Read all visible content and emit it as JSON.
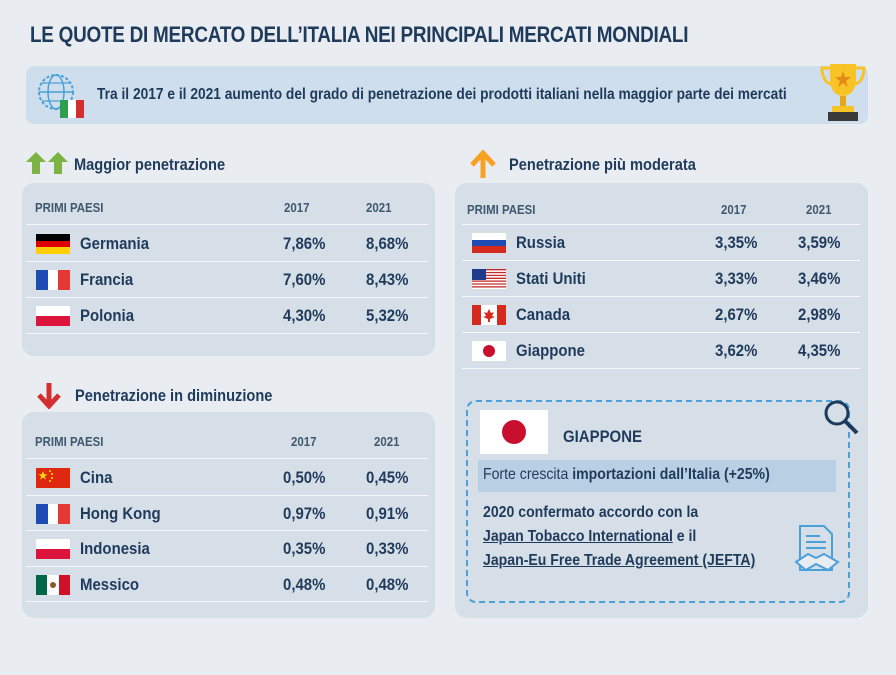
{
  "title": "LE QUOTE DI MERCATO DELL’ITALIA NEI PRINCIPALI MERCATI MONDIALI",
  "banner": {
    "text": "Tra il 2017 e il 2021 aumento del grado di penetrazione dei prodotti italiani nella maggior parte dei mercati",
    "left_icon": "globe-italy-flag-icon",
    "right_icon": "trophy-icon"
  },
  "columns": {
    "country": "PRIMI PAESI",
    "y1": "2017",
    "y2": "2021"
  },
  "colors": {
    "accent_green": "#7cb342",
    "accent_orange": "#f7a021",
    "accent_red": "#d32f2f",
    "navy": "#1f3b5c",
    "card": "#d6dfe7"
  },
  "maggior": {
    "title": "Maggior penetrazione",
    "icon": "double-arrow-up-green-icon",
    "rows": [
      {
        "country": "Germania",
        "v2017": "7,86%",
        "v2021": "8,68%",
        "flag": "de"
      },
      {
        "country": "Francia",
        "v2017": "7,60%",
        "v2021": "8,43%",
        "flag": "fr"
      },
      {
        "country": "Polonia",
        "v2017": "4,30%",
        "v2021": "5,32%",
        "flag": "pl"
      }
    ]
  },
  "diminuzione": {
    "title": "Penetrazione in diminuzione",
    "icon": "arrow-down-red-icon",
    "rows": [
      {
        "country": "Cina",
        "v2017": "0,50%",
        "v2021": "0,45%",
        "flag": "cn"
      },
      {
        "country": "Hong Kong",
        "v2017": "0,97%",
        "v2021": "0,91%",
        "flag": "fr"
      },
      {
        "country": "Indonesia",
        "v2017": "0,35%",
        "v2021": "0,33%",
        "flag": "pl"
      },
      {
        "country": "Messico",
        "v2017": "0,48%",
        "v2021": "0,48%",
        "flag": "mx"
      }
    ]
  },
  "moderata": {
    "title": "Penetrazione più moderata",
    "icon": "arrow-up-orange-icon",
    "rows": [
      {
        "country": "Russia",
        "v2017": "3,35%",
        "v2021": "3,59%",
        "flag": "ru"
      },
      {
        "country": "Stati Uniti",
        "v2017": "3,33%",
        "v2021": "3,46%",
        "flag": "us"
      },
      {
        "country": "Canada",
        "v2017": "2,67%",
        "v2021": "2,98%",
        "flag": "ca"
      },
      {
        "country": "Giappone",
        "v2017": "3,62%",
        "v2021": "4,35%",
        "flag": "jp"
      }
    ]
  },
  "japan": {
    "title": "GIAPPONE",
    "highlight_pre": "Forte crescita ",
    "highlight_bold": "importazioni dall’Italia",
    "highlight_post": " (+25%)",
    "line1": "2020 confermato accordo con la",
    "line2_link": "Japan Tobacco International",
    "line2_post": " e il",
    "line3_link": "Japan-Eu Free Trade Agreement (JEFTA)",
    "icons": [
      "magnifier-icon",
      "agreement-document-icon"
    ]
  }
}
